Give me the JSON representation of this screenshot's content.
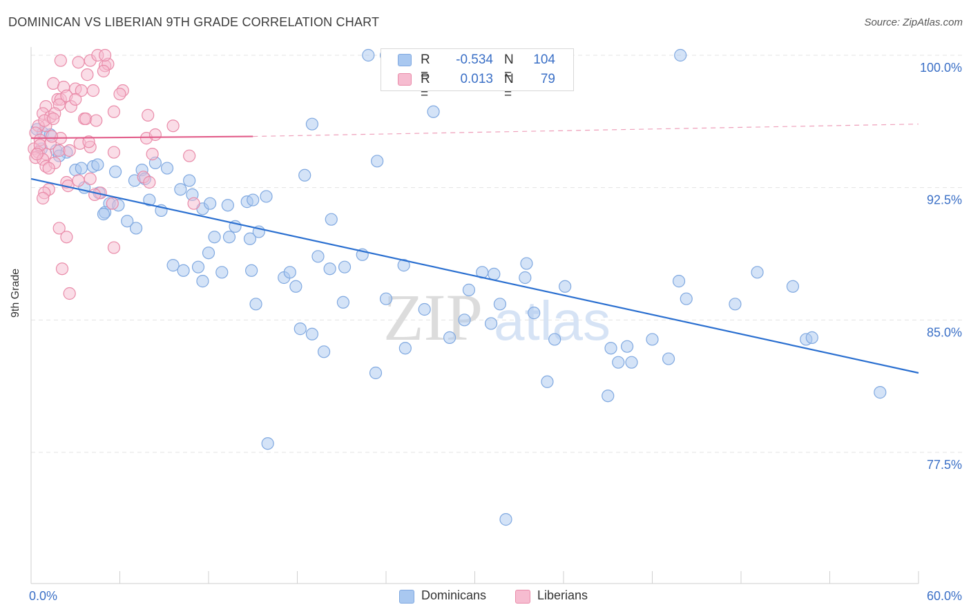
{
  "title": "DOMINICAN VS LIBERIAN 9TH GRADE CORRELATION CHART",
  "source": "Source: ZipAtlas.com",
  "watermark": {
    "part1": "ZIP",
    "part2": "atlas"
  },
  "colors": {
    "blue": "#7fa8e0",
    "blue_fill": "#a9c8f0",
    "blue_line": "#2a6fd0",
    "pink": "#e98aa8",
    "pink_fill": "#f6bcd0",
    "pink_line": "#e25d8a",
    "axis_text": "#3a6fc6",
    "grid": "#e3e3e3"
  },
  "legend": {
    "rows": [
      {
        "r_label": "R =",
        "r_value": "-0.534",
        "n_label": "N =",
        "n_value": "104"
      },
      {
        "r_label": "R =",
        "r_value": "0.013",
        "n_label": "N =",
        "n_value": "79"
      }
    ]
  },
  "bottom_legend": {
    "series1": "Dominicans",
    "series2": "Liberians"
  },
  "chart_data": {
    "type": "scatter",
    "title": "DOMINICAN VS LIBERIAN 9TH GRADE CORRELATION CHART",
    "xlabel": "",
    "ylabel": "9th Grade",
    "xlim": [
      0,
      60
    ],
    "ylim": [
      71,
      101
    ],
    "x_tick_labels": [
      "0.0%",
      "60.0%"
    ],
    "y_ticks": [
      77.5,
      85.0,
      92.5,
      100.0
    ],
    "y_tick_labels": [
      "77.5%",
      "85.0%",
      "92.5%",
      "100.0%"
    ],
    "grid": true,
    "series": [
      {
        "name": "Dominicans",
        "trend": {
          "x0": 0,
          "y0": 93.0,
          "x1": 60,
          "y1": 82.0,
          "dashed_from": 60
        },
        "points": [
          [
            0.4,
            95.8
          ],
          [
            0.8,
            95.6
          ],
          [
            1.3,
            95.5
          ],
          [
            0.7,
            94.7
          ],
          [
            1.7,
            94.6
          ],
          [
            2.4,
            94.5
          ],
          [
            1.9,
            94.3
          ],
          [
            3.0,
            93.5
          ],
          [
            3.4,
            93.6
          ],
          [
            4.2,
            93.7
          ],
          [
            4.5,
            93.8
          ],
          [
            5.7,
            93.4
          ],
          [
            7.0,
            92.9
          ],
          [
            7.5,
            93.5
          ],
          [
            7.7,
            93.0
          ],
          [
            8.4,
            93.9
          ],
          [
            9.2,
            93.6
          ],
          [
            10.7,
            92.9
          ],
          [
            3.6,
            92.5
          ],
          [
            4.6,
            92.2
          ],
          [
            5.3,
            91.6
          ],
          [
            5.9,
            91.5
          ],
          [
            8.0,
            91.8
          ],
          [
            8.8,
            91.2
          ],
          [
            10.1,
            92.4
          ],
          [
            10.9,
            92.1
          ],
          [
            11.6,
            91.3
          ],
          [
            12.1,
            91.6
          ],
          [
            13.3,
            91.5
          ],
          [
            14.6,
            91.7
          ],
          [
            15.0,
            91.8
          ],
          [
            15.9,
            92.0
          ],
          [
            5.0,
            91.1
          ],
          [
            6.5,
            90.6
          ],
          [
            7.1,
            90.2
          ],
          [
            13.8,
            90.3
          ],
          [
            13.4,
            89.7
          ],
          [
            14.8,
            89.6
          ],
          [
            12.4,
            89.7
          ],
          [
            15.4,
            90.0
          ],
          [
            18.5,
            93.2
          ],
          [
            19.0,
            96.1
          ],
          [
            23.4,
            94.0
          ],
          [
            22.8,
            100.0
          ],
          [
            24.0,
            100.0
          ],
          [
            27.2,
            96.8
          ],
          [
            32.0,
            100.0
          ],
          [
            43.9,
            100.0
          ],
          [
            20.3,
            90.7
          ],
          [
            19.4,
            88.6
          ],
          [
            12.0,
            88.8
          ],
          [
            9.6,
            88.1
          ],
          [
            10.3,
            87.8
          ],
          [
            11.3,
            88.0
          ],
          [
            11.6,
            87.2
          ],
          [
            12.9,
            87.7
          ],
          [
            14.9,
            87.8
          ],
          [
            17.1,
            87.4
          ],
          [
            17.5,
            87.7
          ],
          [
            17.9,
            86.9
          ],
          [
            20.2,
            87.9
          ],
          [
            21.2,
            88.0
          ],
          [
            22.4,
            88.7
          ],
          [
            25.2,
            88.1
          ],
          [
            30.5,
            87.7
          ],
          [
            31.3,
            87.6
          ],
          [
            33.5,
            88.2
          ],
          [
            33.4,
            87.4
          ],
          [
            15.2,
            85.9
          ],
          [
            21.1,
            86.0
          ],
          [
            24.0,
            86.2
          ],
          [
            26.6,
            85.6
          ],
          [
            29.6,
            86.7
          ],
          [
            31.7,
            85.9
          ],
          [
            36.1,
            86.9
          ],
          [
            34.0,
            85.4
          ],
          [
            43.8,
            87.2
          ],
          [
            44.3,
            86.2
          ],
          [
            47.6,
            85.9
          ],
          [
            49.1,
            87.7
          ],
          [
            51.5,
            86.9
          ],
          [
            18.2,
            84.5
          ],
          [
            19.0,
            84.2
          ],
          [
            19.8,
            83.2
          ],
          [
            25.3,
            83.4
          ],
          [
            28.3,
            84.0
          ],
          [
            31.1,
            84.8
          ],
          [
            35.4,
            83.9
          ],
          [
            29.3,
            85.0
          ],
          [
            39.2,
            83.4
          ],
          [
            40.3,
            83.5
          ],
          [
            42.0,
            83.9
          ],
          [
            43.1,
            82.8
          ],
          [
            39.7,
            82.6
          ],
          [
            40.6,
            82.6
          ],
          [
            52.4,
            83.9
          ],
          [
            52.8,
            84.0
          ],
          [
            23.3,
            82.0
          ],
          [
            34.9,
            81.5
          ],
          [
            39.0,
            80.7
          ],
          [
            57.4,
            80.9
          ],
          [
            16.0,
            78.0
          ],
          [
            32.1,
            73.7
          ],
          [
            4.9,
            91.0
          ]
        ]
      },
      {
        "name": "Liberians",
        "trend": {
          "x0": 0,
          "y0": 95.3,
          "x1": 15,
          "y1": 95.4,
          "dashed_from": 15,
          "x_end": 60,
          "y_end": 96.1
        },
        "points": [
          [
            2.0,
            99.7
          ],
          [
            3.2,
            99.6
          ],
          [
            4.0,
            99.7
          ],
          [
            4.5,
            100.0
          ],
          [
            5.0,
            99.4
          ],
          [
            5.2,
            99.5
          ],
          [
            3.8,
            98.9
          ],
          [
            4.9,
            99.1
          ],
          [
            1.5,
            98.4
          ],
          [
            2.2,
            98.2
          ],
          [
            3.0,
            98.1
          ],
          [
            3.4,
            98.0
          ],
          [
            4.2,
            98.0
          ],
          [
            6.2,
            98.0
          ],
          [
            1.8,
            97.5
          ],
          [
            2.0,
            97.5
          ],
          [
            2.4,
            97.7
          ],
          [
            2.7,
            97.1
          ],
          [
            1.0,
            97.1
          ],
          [
            1.9,
            97.2
          ],
          [
            3.0,
            97.5
          ],
          [
            0.8,
            96.7
          ],
          [
            1.3,
            96.5
          ],
          [
            1.6,
            96.7
          ],
          [
            3.6,
            96.4
          ],
          [
            5.6,
            96.8
          ],
          [
            7.9,
            96.6
          ],
          [
            1.0,
            96.0
          ],
          [
            0.5,
            96.0
          ],
          [
            0.9,
            96.3
          ],
          [
            1.5,
            96.4
          ],
          [
            3.7,
            96.4
          ],
          [
            4.4,
            96.3
          ],
          [
            9.6,
            96.0
          ],
          [
            0.3,
            95.6
          ],
          [
            0.6,
            95.2
          ],
          [
            1.3,
            95.0
          ],
          [
            2.0,
            95.3
          ],
          [
            3.3,
            95.0
          ],
          [
            7.8,
            95.3
          ],
          [
            8.4,
            95.5
          ],
          [
            0.2,
            94.7
          ],
          [
            0.5,
            94.5
          ],
          [
            1.0,
            94.4
          ],
          [
            1.9,
            94.6
          ],
          [
            2.6,
            94.6
          ],
          [
            4.0,
            94.8
          ],
          [
            5.6,
            94.5
          ],
          [
            10.7,
            94.3
          ],
          [
            0.3,
            94.2
          ],
          [
            0.8,
            94.1
          ],
          [
            1.0,
            93.7
          ],
          [
            1.6,
            93.9
          ],
          [
            1.2,
            93.6
          ],
          [
            4.0,
            93.0
          ],
          [
            7.6,
            93.1
          ],
          [
            8.0,
            92.8
          ],
          [
            2.4,
            92.8
          ],
          [
            2.5,
            92.6
          ],
          [
            3.2,
            92.9
          ],
          [
            4.7,
            92.2
          ],
          [
            4.3,
            92.1
          ],
          [
            5.5,
            91.6
          ],
          [
            1.2,
            92.4
          ],
          [
            0.9,
            92.2
          ],
          [
            0.8,
            91.9
          ],
          [
            11.0,
            91.6
          ],
          [
            1.9,
            90.2
          ],
          [
            2.4,
            89.7
          ],
          [
            5.6,
            89.1
          ],
          [
            2.1,
            87.9
          ],
          [
            2.6,
            86.5
          ],
          [
            0.6,
            94.9
          ],
          [
            1.4,
            95.4
          ],
          [
            3.9,
            95.1
          ],
          [
            8.2,
            94.4
          ],
          [
            0.4,
            94.4
          ],
          [
            5.0,
            100.0
          ],
          [
            6.0,
            97.8
          ]
        ]
      }
    ]
  }
}
